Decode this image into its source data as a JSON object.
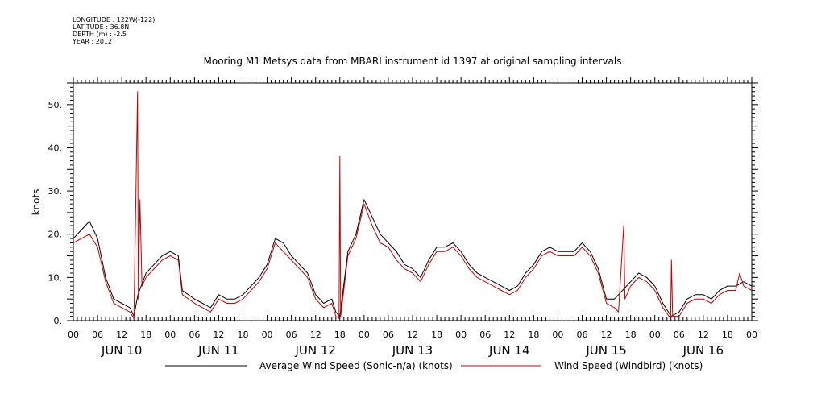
{
  "header": {
    "longitude": "LONGITUDE : 122W(-122)",
    "latitude": "LATITUDE : 36.8N",
    "depth": "DEPTH (m) : -2.5",
    "year": "YEAR : 2012"
  },
  "colors": {
    "series_black": "#000000",
    "series_red": "#cc0000"
  },
  "chart_data": {
    "type": "line",
    "title": "Mooring M1 Metsys data from MBARI instrument id 1397 at original sampling intervals",
    "ylabel": "knots",
    "xlabel": "",
    "ylim": [
      0,
      55
    ],
    "xlim_hours": [
      0,
      168
    ],
    "y_ticks": [
      0,
      10,
      20,
      30,
      40,
      50
    ],
    "y_tick_labels": [
      "0.",
      "10.",
      "20.",
      "30.",
      "40.",
      "50."
    ],
    "hour_tick_labels": [
      "00",
      "06",
      "12",
      "18",
      "00",
      "06",
      "12",
      "18",
      "00",
      "06",
      "12",
      "18",
      "00",
      "06",
      "12",
      "18",
      "00",
      "06",
      "12",
      "18",
      "00",
      "06",
      "12",
      "18",
      "00",
      "06",
      "12",
      "18",
      "00"
    ],
    "day_labels": [
      "JUN 10",
      "JUN 11",
      "JUN 12",
      "JUN 13",
      "JUN 14",
      "JUN 15",
      "JUN 16"
    ],
    "grid": false,
    "legend_position": "bottom",
    "series": [
      {
        "name": "Average Wind Speed (Sonic-n/a) (knots)",
        "color": "#000000",
        "points": [
          [
            0,
            19
          ],
          [
            2,
            21
          ],
          [
            4,
            23
          ],
          [
            6,
            19
          ],
          [
            8,
            10
          ],
          [
            10,
            5
          ],
          [
            12,
            4
          ],
          [
            14,
            3
          ],
          [
            15,
            1
          ],
          [
            16,
            6
          ],
          [
            18,
            11
          ],
          [
            20,
            13
          ],
          [
            22,
            15
          ],
          [
            24,
            16
          ],
          [
            26,
            15
          ],
          [
            27,
            7
          ],
          [
            30,
            5
          ],
          [
            32,
            4
          ],
          [
            34,
            3
          ],
          [
            36,
            6
          ],
          [
            38,
            5
          ],
          [
            40,
            5
          ],
          [
            42,
            6
          ],
          [
            44,
            8
          ],
          [
            46,
            10
          ],
          [
            48,
            13
          ],
          [
            50,
            19
          ],
          [
            52,
            18
          ],
          [
            54,
            15
          ],
          [
            56,
            13
          ],
          [
            58,
            11
          ],
          [
            60,
            6
          ],
          [
            62,
            4
          ],
          [
            64,
            5
          ],
          [
            65,
            2
          ],
          [
            66,
            1
          ],
          [
            68,
            16
          ],
          [
            70,
            20
          ],
          [
            72,
            28
          ],
          [
            74,
            24
          ],
          [
            76,
            20
          ],
          [
            78,
            18
          ],
          [
            80,
            16
          ],
          [
            82,
            13
          ],
          [
            84,
            12
          ],
          [
            86,
            10
          ],
          [
            88,
            14
          ],
          [
            90,
            17
          ],
          [
            92,
            17
          ],
          [
            94,
            18
          ],
          [
            96,
            16
          ],
          [
            98,
            13
          ],
          [
            100,
            11
          ],
          [
            102,
            10
          ],
          [
            104,
            9
          ],
          [
            106,
            8
          ],
          [
            108,
            7
          ],
          [
            110,
            8
          ],
          [
            112,
            11
          ],
          [
            114,
            13
          ],
          [
            116,
            16
          ],
          [
            118,
            17
          ],
          [
            120,
            16
          ],
          [
            122,
            16
          ],
          [
            124,
            16
          ],
          [
            126,
            18
          ],
          [
            128,
            16
          ],
          [
            130,
            12
          ],
          [
            132,
            5
          ],
          [
            134,
            5
          ],
          [
            135,
            6
          ],
          [
            136,
            7
          ],
          [
            138,
            9
          ],
          [
            140,
            11
          ],
          [
            142,
            10
          ],
          [
            144,
            8
          ],
          [
            146,
            4
          ],
          [
            148,
            1
          ],
          [
            150,
            2
          ],
          [
            152,
            5
          ],
          [
            154,
            6
          ],
          [
            156,
            6
          ],
          [
            158,
            5
          ],
          [
            160,
            7
          ],
          [
            162,
            8
          ],
          [
            164,
            8
          ],
          [
            166,
            9
          ],
          [
            168,
            8
          ]
        ]
      },
      {
        "name": "Wind Speed (Windbird) (knots)",
        "color": "#cc0000",
        "points": [
          [
            0,
            18
          ],
          [
            2,
            19
          ],
          [
            4,
            20
          ],
          [
            6,
            17
          ],
          [
            8,
            9
          ],
          [
            10,
            4
          ],
          [
            12,
            3
          ],
          [
            14,
            2
          ],
          [
            15,
            0.5
          ],
          [
            15.9,
            53
          ],
          [
            16.1,
            5
          ],
          [
            16.5,
            28
          ],
          [
            17,
            8
          ],
          [
            18,
            10
          ],
          [
            20,
            12
          ],
          [
            22,
            14
          ],
          [
            24,
            15
          ],
          [
            26,
            14
          ],
          [
            27,
            6
          ],
          [
            30,
            4
          ],
          [
            32,
            3
          ],
          [
            34,
            2
          ],
          [
            36,
            5
          ],
          [
            38,
            4
          ],
          [
            40,
            4
          ],
          [
            42,
            5
          ],
          [
            44,
            7
          ],
          [
            46,
            9
          ],
          [
            48,
            12
          ],
          [
            50,
            18
          ],
          [
            52,
            16
          ],
          [
            54,
            14
          ],
          [
            56,
            12
          ],
          [
            58,
            10
          ],
          [
            60,
            5
          ],
          [
            62,
            3
          ],
          [
            64,
            4
          ],
          [
            65,
            1
          ],
          [
            65.8,
            0.5
          ],
          [
            66,
            38
          ],
          [
            66.2,
            1
          ],
          [
            68,
            15
          ],
          [
            70,
            19
          ],
          [
            72,
            27
          ],
          [
            74,
            22
          ],
          [
            76,
            18
          ],
          [
            78,
            17
          ],
          [
            80,
            14
          ],
          [
            82,
            12
          ],
          [
            84,
            11
          ],
          [
            86,
            9
          ],
          [
            88,
            13
          ],
          [
            90,
            16
          ],
          [
            92,
            16
          ],
          [
            94,
            17
          ],
          [
            96,
            15
          ],
          [
            98,
            12
          ],
          [
            100,
            10
          ],
          [
            102,
            9
          ],
          [
            104,
            8
          ],
          [
            106,
            7
          ],
          [
            108,
            6
          ],
          [
            110,
            7
          ],
          [
            112,
            10
          ],
          [
            114,
            12
          ],
          [
            116,
            15
          ],
          [
            118,
            16
          ],
          [
            120,
            15
          ],
          [
            122,
            15
          ],
          [
            124,
            15
          ],
          [
            126,
            17
          ],
          [
            128,
            15
          ],
          [
            130,
            11
          ],
          [
            132,
            4
          ],
          [
            134,
            3
          ],
          [
            135,
            2
          ],
          [
            136.3,
            22
          ],
          [
            136.6,
            5
          ],
          [
            138,
            8
          ],
          [
            140,
            10
          ],
          [
            142,
            9
          ],
          [
            144,
            7
          ],
          [
            146,
            3
          ],
          [
            147.9,
            0.5
          ],
          [
            148.1,
            14
          ],
          [
            148.4,
            1
          ],
          [
            150,
            1
          ],
          [
            152,
            4
          ],
          [
            154,
            5
          ],
          [
            156,
            5
          ],
          [
            158,
            4
          ],
          [
            160,
            6
          ],
          [
            162,
            7
          ],
          [
            164,
            7
          ],
          [
            165,
            11
          ],
          [
            166,
            8
          ],
          [
            168,
            7
          ]
        ]
      }
    ]
  }
}
